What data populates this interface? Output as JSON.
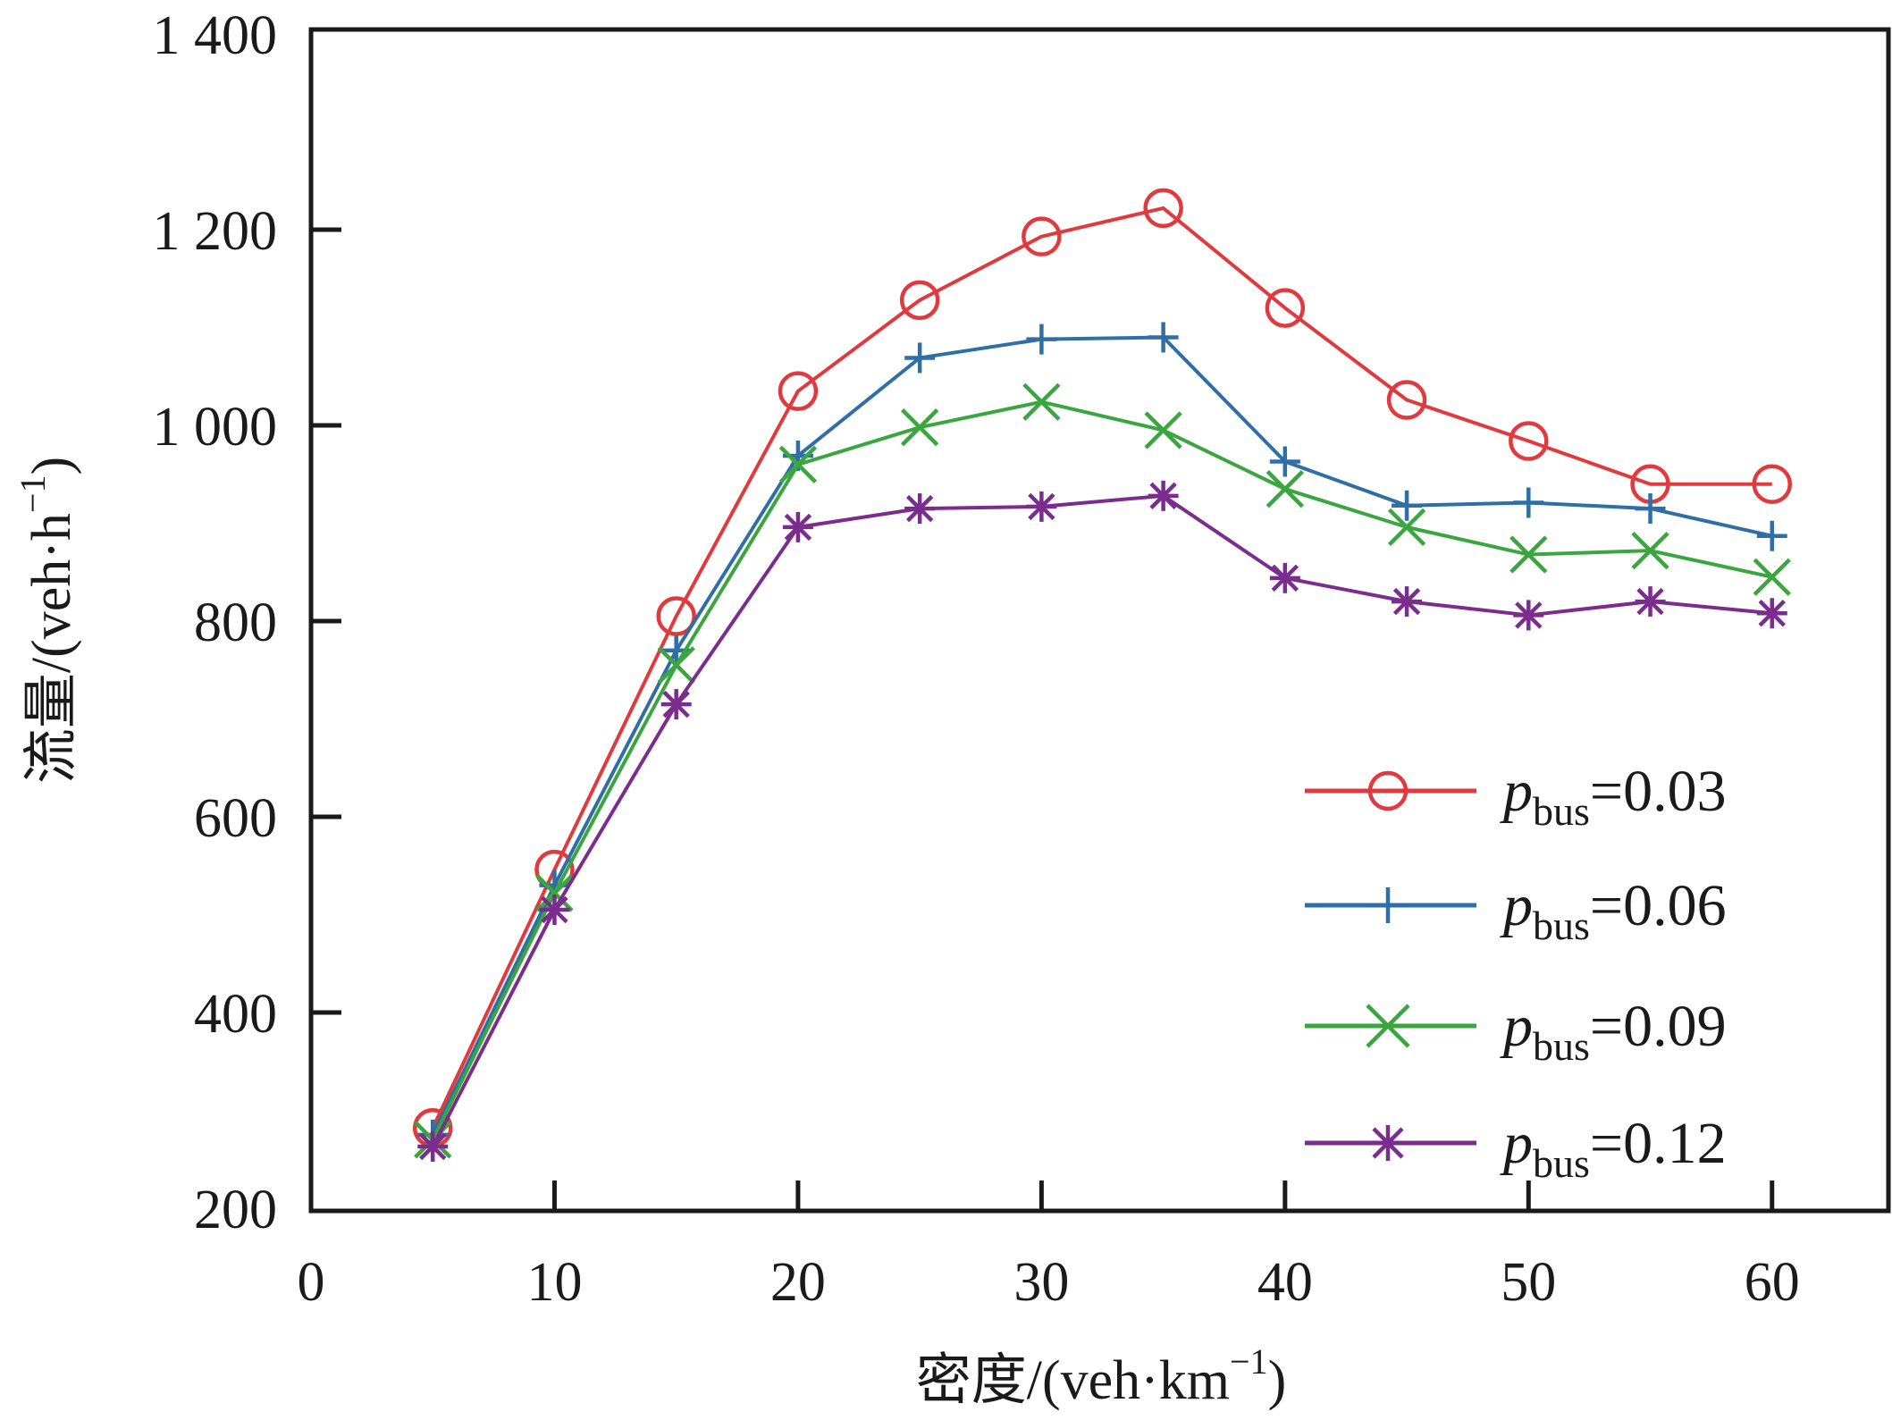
{
  "chart_data": {
    "type": "line",
    "title": "",
    "xlabel": "密度/(veh·km⁻¹)",
    "xlabel_parts": {
      "main": "密度/(veh·km",
      "sup": "−1",
      "close": ")"
    },
    "ylabel": "流量/(veh·h⁻¹)",
    "ylabel_parts": {
      "main": "流量/(veh·h",
      "sup": "−1",
      "close": ")"
    },
    "xlim": [
      0,
      65
    ],
    "ylim": [
      200,
      1400
    ],
    "xticks": [
      0,
      10,
      20,
      30,
      40,
      50,
      60
    ],
    "xtick_labels": [
      "0",
      "10",
      "20",
      "30",
      "40",
      "50",
      "60"
    ],
    "yticks": [
      200,
      400,
      600,
      800,
      1000,
      1200,
      1400
    ],
    "ytick_labels": [
      "200",
      "400",
      "600",
      "800",
      "1 000",
      "1 200",
      "1 400"
    ],
    "grid": false,
    "legend_position": "right",
    "x": [
      5,
      10,
      15,
      20,
      25,
      30,
      35,
      40,
      45,
      50,
      55,
      60
    ],
    "series": [
      {
        "name": "p_bus=0.03",
        "label_main": "p",
        "label_sub": "bus",
        "label_value": "=0.03",
        "marker": "circle",
        "color": "#e03a3e",
        "values": [
          282,
          546,
          805,
          1035,
          1128,
          1193,
          1222,
          1120,
          1026,
          984,
          940,
          940
        ]
      },
      {
        "name": "p_bus=0.06",
        "label_main": "p",
        "label_sub": "bus",
        "label_value": "=0.06",
        "marker": "plus",
        "color": "#2f6fa5",
        "values": [
          275,
          530,
          770,
          969,
          1069,
          1088,
          1090,
          963,
          918,
          921,
          915,
          887
        ]
      },
      {
        "name": "p_bus=0.09",
        "label_main": "p",
        "label_sub": "bus",
        "label_value": "=0.09",
        "marker": "x",
        "color": "#3aa63f",
        "values": [
          270,
          522,
          755,
          960,
          998,
          1024,
          995,
          935,
          896,
          868,
          872,
          845
        ]
      },
      {
        "name": "p_bus=0.12",
        "label_main": "p",
        "label_sub": "bus",
        "label_value": "=0.12",
        "marker": "star",
        "color": "#7b2d8e",
        "values": [
          263,
          505,
          715,
          896,
          915,
          917,
          928,
          844,
          820,
          806,
          820,
          808
        ]
      }
    ]
  }
}
